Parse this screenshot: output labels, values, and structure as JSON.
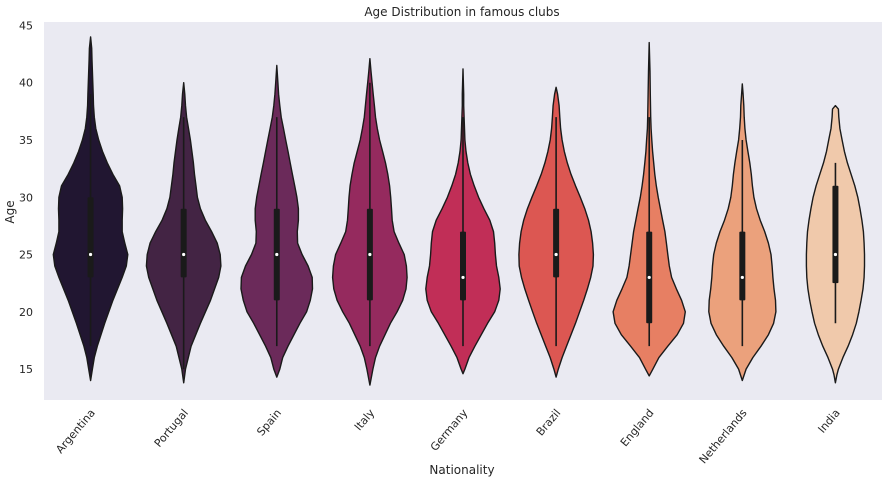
{
  "chart_data": {
    "type": "violin",
    "title": "Age Distribution in famous clubs",
    "xlabel": "Nationality",
    "ylabel": "Age",
    "ylim": [
      12.3,
      45.3
    ],
    "yticks": [
      15,
      20,
      25,
      30,
      35,
      40,
      45
    ],
    "grid": false,
    "background": "#eaeaf2",
    "categories": [
      "Argentina",
      "Portugal",
      "Spain",
      "Italy",
      "Germany",
      "Brazil",
      "England",
      "Netherlands",
      "India"
    ],
    "colors": [
      "#211631",
      "#432444",
      "#6b2a5a",
      "#952a5e",
      "#c12e57",
      "#dc5752",
      "#e77f63",
      "#eba17c",
      "#f0c9ab"
    ],
    "series": [
      {
        "min": 17,
        "q1": 23,
        "median": 25,
        "q3": 30,
        "max": 39,
        "range": [
          14,
          44
        ],
        "profile": [
          [
            14,
            0
          ],
          [
            15,
            0.05
          ],
          [
            16,
            0.1
          ],
          [
            17,
            0.18
          ],
          [
            19,
            0.38
          ],
          [
            21,
            0.6
          ],
          [
            23,
            0.85
          ],
          [
            24,
            0.96
          ],
          [
            25,
            1.0
          ],
          [
            26,
            0.92
          ],
          [
            27,
            0.85
          ],
          [
            28,
            0.85
          ],
          [
            29,
            0.86
          ],
          [
            30,
            0.85
          ],
          [
            31,
            0.78
          ],
          [
            32,
            0.6
          ],
          [
            33,
            0.45
          ],
          [
            34,
            0.32
          ],
          [
            35,
            0.22
          ],
          [
            36,
            0.14
          ],
          [
            37,
            0.1
          ],
          [
            38,
            0.08
          ],
          [
            39,
            0.07
          ],
          [
            40,
            0.06
          ],
          [
            41,
            0.05
          ],
          [
            42,
            0.04
          ],
          [
            43,
            0.03
          ],
          [
            44,
            0
          ]
        ]
      },
      {
        "min": 15,
        "q1": 23,
        "median": 25,
        "q3": 29,
        "max": 37,
        "range": [
          13.8,
          40
        ],
        "profile": [
          [
            13.8,
            0
          ],
          [
            15,
            0.05
          ],
          [
            17,
            0.2
          ],
          [
            19,
            0.45
          ],
          [
            21,
            0.72
          ],
          [
            23,
            0.94
          ],
          [
            24,
            1.0
          ],
          [
            25,
            0.98
          ],
          [
            26,
            0.9
          ],
          [
            27,
            0.75
          ],
          [
            28,
            0.58
          ],
          [
            29,
            0.45
          ],
          [
            30,
            0.37
          ],
          [
            31,
            0.33
          ],
          [
            32,
            0.29
          ],
          [
            33,
            0.26
          ],
          [
            34,
            0.22
          ],
          [
            35,
            0.18
          ],
          [
            36,
            0.13
          ],
          [
            37,
            0.08
          ],
          [
            38,
            0.05
          ],
          [
            39,
            0.03
          ],
          [
            40,
            0
          ]
        ]
      },
      {
        "min": 17,
        "q1": 21,
        "median": 25,
        "q3": 29,
        "max": 37,
        "range": [
          14.3,
          41.5
        ],
        "profile": [
          [
            14.3,
            0
          ],
          [
            15,
            0.08
          ],
          [
            16,
            0.16
          ],
          [
            17,
            0.3
          ],
          [
            19,
            0.62
          ],
          [
            20,
            0.8
          ],
          [
            21,
            0.9
          ],
          [
            22,
            0.96
          ],
          [
            23,
            0.95
          ],
          [
            24,
            0.84
          ],
          [
            25,
            0.68
          ],
          [
            26,
            0.56
          ],
          [
            27,
            0.55
          ],
          [
            28,
            0.58
          ],
          [
            29,
            0.58
          ],
          [
            30,
            0.54
          ],
          [
            31,
            0.48
          ],
          [
            32,
            0.42
          ],
          [
            33,
            0.36
          ],
          [
            34,
            0.3
          ],
          [
            35,
            0.24
          ],
          [
            36,
            0.18
          ],
          [
            37,
            0.12
          ],
          [
            38,
            0.08
          ],
          [
            39,
            0.05
          ],
          [
            40,
            0.03
          ],
          [
            41.5,
            0
          ]
        ]
      },
      {
        "min": 17,
        "q1": 21,
        "median": 25,
        "q3": 29,
        "max": 40,
        "range": [
          13.6,
          42.1
        ],
        "profile": [
          [
            13.6,
            0
          ],
          [
            15,
            0.08
          ],
          [
            16,
            0.15
          ],
          [
            17,
            0.26
          ],
          [
            19,
            0.55
          ],
          [
            20,
            0.73
          ],
          [
            21,
            0.88
          ],
          [
            22,
            0.97
          ],
          [
            23,
            1.0
          ],
          [
            24,
            0.98
          ],
          [
            25,
            0.92
          ],
          [
            26,
            0.78
          ],
          [
            27,
            0.65
          ],
          [
            28,
            0.6
          ],
          [
            29,
            0.58
          ],
          [
            30,
            0.56
          ],
          [
            31,
            0.53
          ],
          [
            32,
            0.48
          ],
          [
            33,
            0.42
          ],
          [
            34,
            0.34
          ],
          [
            35,
            0.26
          ],
          [
            36,
            0.2
          ],
          [
            37,
            0.15
          ],
          [
            38,
            0.12
          ],
          [
            39,
            0.09
          ],
          [
            40,
            0.06
          ],
          [
            41,
            0.03
          ],
          [
            42.1,
            0
          ]
        ]
      },
      {
        "min": 17,
        "q1": 21,
        "median": 23,
        "q3": 27,
        "max": 37,
        "range": [
          14.6,
          41.2
        ],
        "profile": [
          [
            14.6,
            0
          ],
          [
            15,
            0.05
          ],
          [
            16,
            0.16
          ],
          [
            17,
            0.32
          ],
          [
            19,
            0.66
          ],
          [
            20,
            0.85
          ],
          [
            21,
            0.96
          ],
          [
            22,
            1.0
          ],
          [
            23,
            0.96
          ],
          [
            24,
            0.9
          ],
          [
            25,
            0.87
          ],
          [
            26,
            0.85
          ],
          [
            27,
            0.82
          ],
          [
            28,
            0.72
          ],
          [
            29,
            0.56
          ],
          [
            30,
            0.42
          ],
          [
            31,
            0.3
          ],
          [
            32,
            0.2
          ],
          [
            33,
            0.13
          ],
          [
            34,
            0.08
          ],
          [
            35,
            0.05
          ],
          [
            36,
            0.04
          ],
          [
            37,
            0.03
          ],
          [
            38,
            0.02
          ],
          [
            39,
            0.02
          ],
          [
            41.2,
            0
          ]
        ]
      },
      {
        "min": 17,
        "q1": 23,
        "median": 25,
        "q3": 29,
        "max": 37,
        "range": [
          14.3,
          39.6
        ],
        "profile": [
          [
            14.3,
            0
          ],
          [
            15,
            0.06
          ],
          [
            16,
            0.16
          ],
          [
            17,
            0.28
          ],
          [
            18,
            0.4
          ],
          [
            19,
            0.52
          ],
          [
            20,
            0.63
          ],
          [
            21,
            0.74
          ],
          [
            22,
            0.84
          ],
          [
            23,
            0.93
          ],
          [
            24,
            0.99
          ],
          [
            25,
            1.0
          ],
          [
            26,
            0.98
          ],
          [
            27,
            0.94
          ],
          [
            28,
            0.87
          ],
          [
            29,
            0.77
          ],
          [
            30,
            0.65
          ],
          [
            31,
            0.52
          ],
          [
            32,
            0.4
          ],
          [
            33,
            0.3
          ],
          [
            34,
            0.22
          ],
          [
            35,
            0.16
          ],
          [
            36,
            0.12
          ],
          [
            37,
            0.1
          ],
          [
            38,
            0.08
          ],
          [
            39,
            0.04
          ],
          [
            39.6,
            0
          ]
        ]
      },
      {
        "min": 17,
        "q1": 19,
        "median": 23,
        "q3": 27,
        "max": 37,
        "range": [
          14.4,
          43.5
        ],
        "profile": [
          [
            14.4,
            0
          ],
          [
            15,
            0.1
          ],
          [
            16,
            0.26
          ],
          [
            17,
            0.5
          ],
          [
            18,
            0.75
          ],
          [
            19,
            0.92
          ],
          [
            20,
            0.97
          ],
          [
            21,
            0.87
          ],
          [
            22,
            0.73
          ],
          [
            23,
            0.6
          ],
          [
            24,
            0.54
          ],
          [
            25,
            0.5
          ],
          [
            26,
            0.46
          ],
          [
            27,
            0.42
          ],
          [
            28,
            0.36
          ],
          [
            29,
            0.3
          ],
          [
            30,
            0.24
          ],
          [
            31,
            0.19
          ],
          [
            32,
            0.15
          ],
          [
            33,
            0.12
          ],
          [
            34,
            0.09
          ],
          [
            35,
            0.07
          ],
          [
            36,
            0.05
          ],
          [
            37,
            0.04
          ],
          [
            39,
            0.03
          ],
          [
            41,
            0.02
          ],
          [
            43.5,
            0
          ]
        ]
      },
      {
        "min": 17,
        "q1": 21,
        "median": 23,
        "q3": 27,
        "max": 35,
        "range": [
          14,
          39.9
        ],
        "profile": [
          [
            14,
            0
          ],
          [
            15,
            0.1
          ],
          [
            16,
            0.28
          ],
          [
            17,
            0.5
          ],
          [
            18,
            0.7
          ],
          [
            19,
            0.84
          ],
          [
            20,
            0.9
          ],
          [
            21,
            0.89
          ],
          [
            22,
            0.85
          ],
          [
            23,
            0.82
          ],
          [
            24,
            0.8
          ],
          [
            25,
            0.77
          ],
          [
            26,
            0.7
          ],
          [
            27,
            0.6
          ],
          [
            28,
            0.48
          ],
          [
            29,
            0.38
          ],
          [
            30,
            0.31
          ],
          [
            31,
            0.27
          ],
          [
            32,
            0.24
          ],
          [
            33,
            0.2
          ],
          [
            34,
            0.15
          ],
          [
            35,
            0.1
          ],
          [
            36,
            0.07
          ],
          [
            37,
            0.05
          ],
          [
            38,
            0.04
          ],
          [
            39,
            0.02
          ],
          [
            39.9,
            0
          ]
        ]
      },
      {
        "min": 19,
        "q1": 22.5,
        "median": 25,
        "q3": 31,
        "max": 33,
        "range": [
          13.8,
          38
        ],
        "profile": [
          [
            13.8,
            0
          ],
          [
            14.5,
            0.04
          ],
          [
            15,
            0.08
          ],
          [
            16,
            0.2
          ],
          [
            17,
            0.34
          ],
          [
            18,
            0.46
          ],
          [
            19,
            0.56
          ],
          [
            20,
            0.63
          ],
          [
            21,
            0.69
          ],
          [
            22,
            0.74
          ],
          [
            23,
            0.77
          ],
          [
            24,
            0.78
          ],
          [
            25,
            0.78
          ],
          [
            26,
            0.77
          ],
          [
            27,
            0.75
          ],
          [
            28,
            0.71
          ],
          [
            29,
            0.66
          ],
          [
            30,
            0.6
          ],
          [
            31,
            0.52
          ],
          [
            32,
            0.42
          ],
          [
            33,
            0.32
          ],
          [
            34,
            0.24
          ],
          [
            35,
            0.18
          ],
          [
            36,
            0.12
          ],
          [
            37,
            0.09
          ],
          [
            37.7,
            0.08
          ],
          [
            38,
            0
          ]
        ]
      }
    ]
  }
}
